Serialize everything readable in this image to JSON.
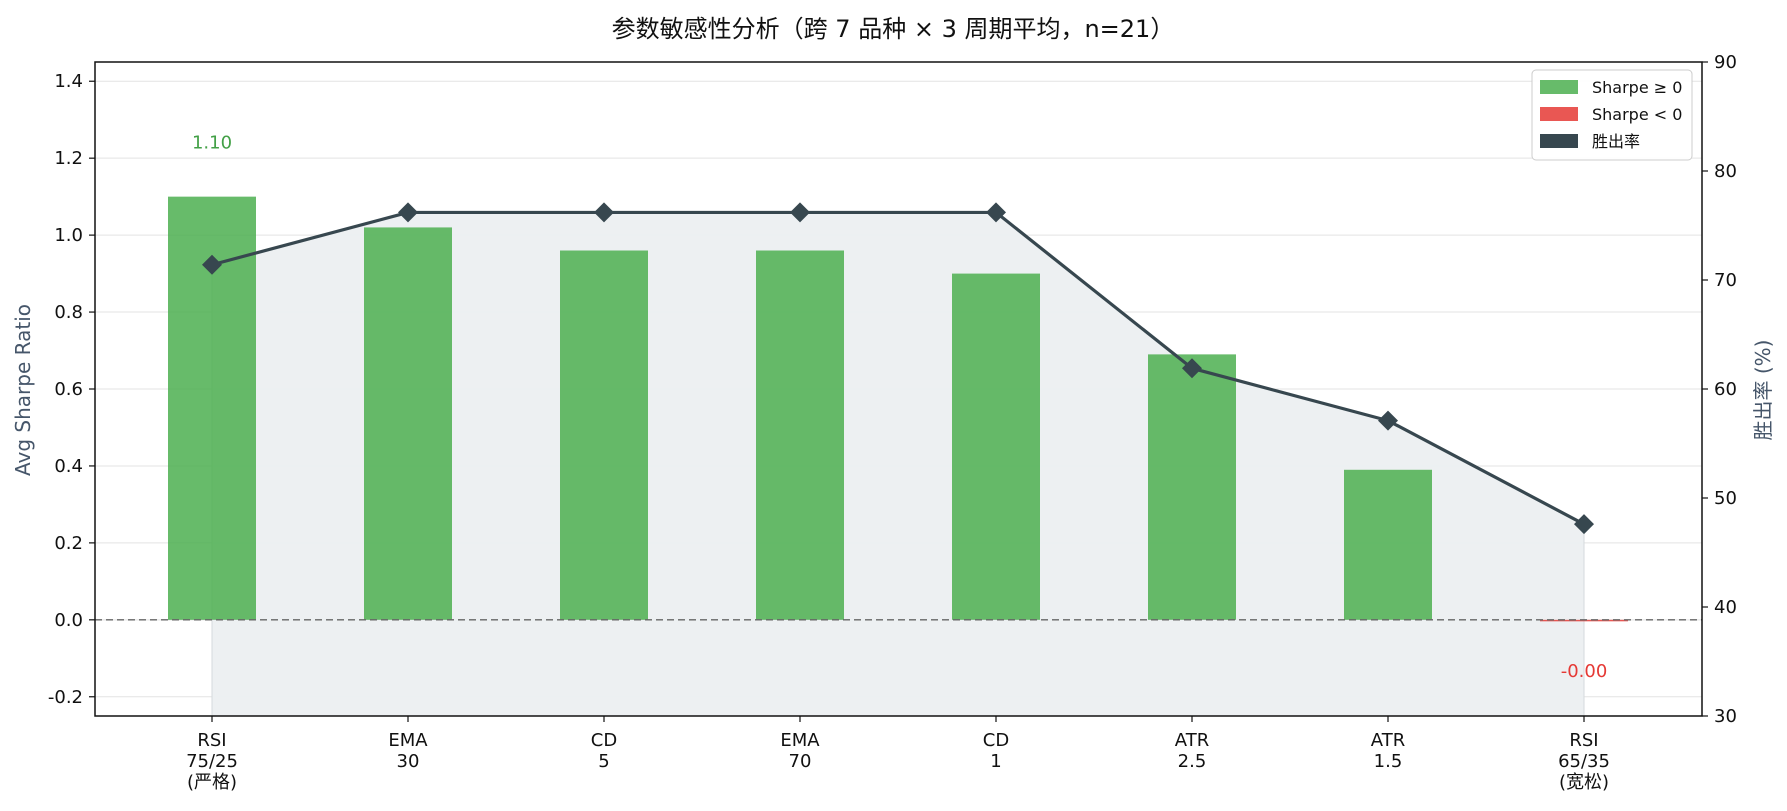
{
  "chart_data": {
    "type": "bar",
    "title": "参数敏感性分析（跨 7 品种 × 3 周期平均，n=21）",
    "ylabel": "Avg Sharpe Ratio",
    "y2label": "胜出率 (%)",
    "ylim": [
      -0.25,
      1.45
    ],
    "y2lim": [
      30,
      90
    ],
    "yticks": [
      "-0.2",
      "0.0",
      "0.2",
      "0.4",
      "0.6",
      "0.8",
      "1.0",
      "1.2",
      "1.4"
    ],
    "y2ticks": [
      "30",
      "40",
      "50",
      "60",
      "70",
      "80",
      "90"
    ],
    "categories": [
      [
        "RSI",
        "75/25",
        "(严格)"
      ],
      [
        "EMA",
        "30"
      ],
      [
        "CD",
        "5"
      ],
      [
        "EMA",
        "70"
      ],
      [
        "CD",
        "1"
      ],
      [
        "ATR",
        "2.5"
      ],
      [
        "ATR",
        "1.5"
      ],
      [
        "RSI",
        "65/35",
        "(宽松)"
      ]
    ],
    "series": [
      {
        "name": "Sharpe ≥ 0",
        "type": "bar",
        "values": [
          1.1,
          1.02,
          0.96,
          0.96,
          0.9,
          0.69,
          0.39,
          -0.003
        ]
      },
      {
        "name": "胜出率",
        "type": "line",
        "axis": "right",
        "values": [
          71.4,
          76.2,
          76.2,
          76.2,
          76.2,
          61.9,
          57.1,
          47.6
        ]
      }
    ],
    "data_labels": [
      {
        "index": 0,
        "text": "1.10"
      },
      {
        "index": 7,
        "text": "-0.00"
      }
    ],
    "legend": {
      "placement": "top-right",
      "items": [
        "Sharpe ≥ 0",
        "Sharpe < 0",
        "胜出率"
      ]
    },
    "grid": true,
    "reference_line_y": 0
  },
  "colors": {
    "positive": "#4caf50",
    "negative": "#e53935",
    "line": "#37474f",
    "fill": "#eceff1",
    "pos_label": "#43a047",
    "neg_label": "#e53935",
    "grid": "#e3e3e3"
  }
}
